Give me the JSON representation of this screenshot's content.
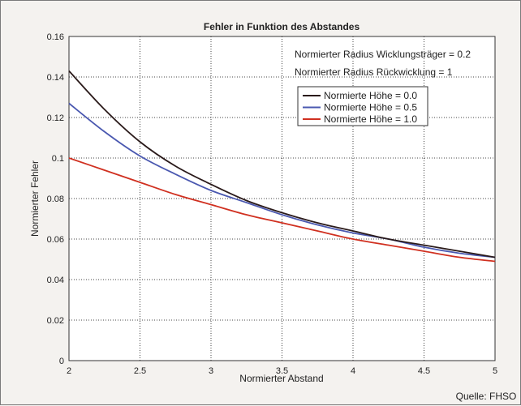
{
  "chart_data": {
    "type": "line",
    "title": "Fehler in Funktion des Abstandes",
    "xlabel": "Normierter Abstand",
    "ylabel": "Normierter Fehler",
    "xlim": [
      2,
      5
    ],
    "ylim": [
      0,
      0.16
    ],
    "xticks": [
      2,
      2.5,
      3,
      3.5,
      4,
      4.5,
      5
    ],
    "xtick_labels": [
      "2",
      "2.5",
      "3",
      "3.5",
      "4",
      "4.5",
      "5"
    ],
    "yticks": [
      0,
      0.02,
      0.04,
      0.06,
      0.08,
      0.1,
      0.12,
      0.14,
      0.16
    ],
    "ytick_labels": [
      "0",
      "0.02",
      "0.04",
      "0.06",
      "0.08",
      "0.1",
      "0.12",
      "0.14",
      "0.16"
    ],
    "grid": true,
    "legend_position": "upper-middle",
    "annotations": [
      "Normierter Radius Wicklungsträger  = 0.2",
      "Normierter Radius Rückwicklung = 1"
    ],
    "source": "Quelle: FHSO",
    "x": [
      2.0,
      2.25,
      2.5,
      2.75,
      3.0,
      3.25,
      3.5,
      3.75,
      4.0,
      4.25,
      4.5,
      4.75,
      5.0
    ],
    "series": [
      {
        "name": "Normierte Höhe = 0.0",
        "color": "#2a1a1a",
        "values": [
          0.143,
          0.124,
          0.108,
          0.096,
          0.087,
          0.079,
          0.073,
          0.068,
          0.064,
          0.06,
          0.057,
          0.054,
          0.051
        ]
      },
      {
        "name": "Normierte Höhe = 0.5",
        "color": "#4a58b0",
        "values": [
          0.127,
          0.113,
          0.101,
          0.092,
          0.084,
          0.078,
          0.072,
          0.067,
          0.063,
          0.06,
          0.056,
          0.053,
          0.051
        ]
      },
      {
        "name": "Normierte Höhe = 1.0",
        "color": "#d03020",
        "values": [
          0.1,
          0.094,
          0.088,
          0.082,
          0.077,
          0.072,
          0.068,
          0.064,
          0.06,
          0.057,
          0.054,
          0.051,
          0.049
        ]
      }
    ]
  }
}
